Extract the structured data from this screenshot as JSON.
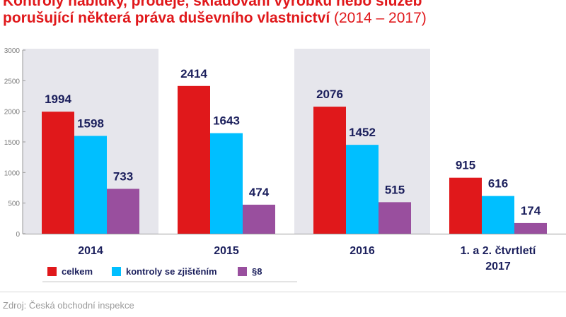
{
  "title": {
    "line1": "Kontroly nabídky, prodeje, skladování výrobků nebo služeb",
    "line2_main": "porušující některá práva duševního vlastnictví",
    "line2_sub": "(2014 – 2017)"
  },
  "source": "Zdroj: Česká obchodní inspekce",
  "colors": {
    "celkem": "#e0181b",
    "kontroly": "#00bfff",
    "s8": "#994f9e",
    "band": "#e6e6ec",
    "label": "#1b1f5c"
  },
  "chart_data": {
    "type": "bar",
    "categories": [
      "2014",
      "2015",
      "2016",
      "1. a 2. čtvrtletí\n2017"
    ],
    "series": [
      {
        "name": "celkem",
        "values": [
          1994,
          2414,
          2076,
          915
        ]
      },
      {
        "name": "kontroly se zjištěním",
        "values": [
          1598,
          1643,
          1452,
          616
        ]
      },
      {
        "name": "§8",
        "values": [
          733,
          474,
          515,
          174
        ]
      }
    ],
    "ylim": [
      0,
      3000
    ],
    "yticks": [
      0,
      500,
      1000,
      1500,
      2000,
      2500,
      3000
    ],
    "legend": "bottom-left",
    "grid": true
  }
}
